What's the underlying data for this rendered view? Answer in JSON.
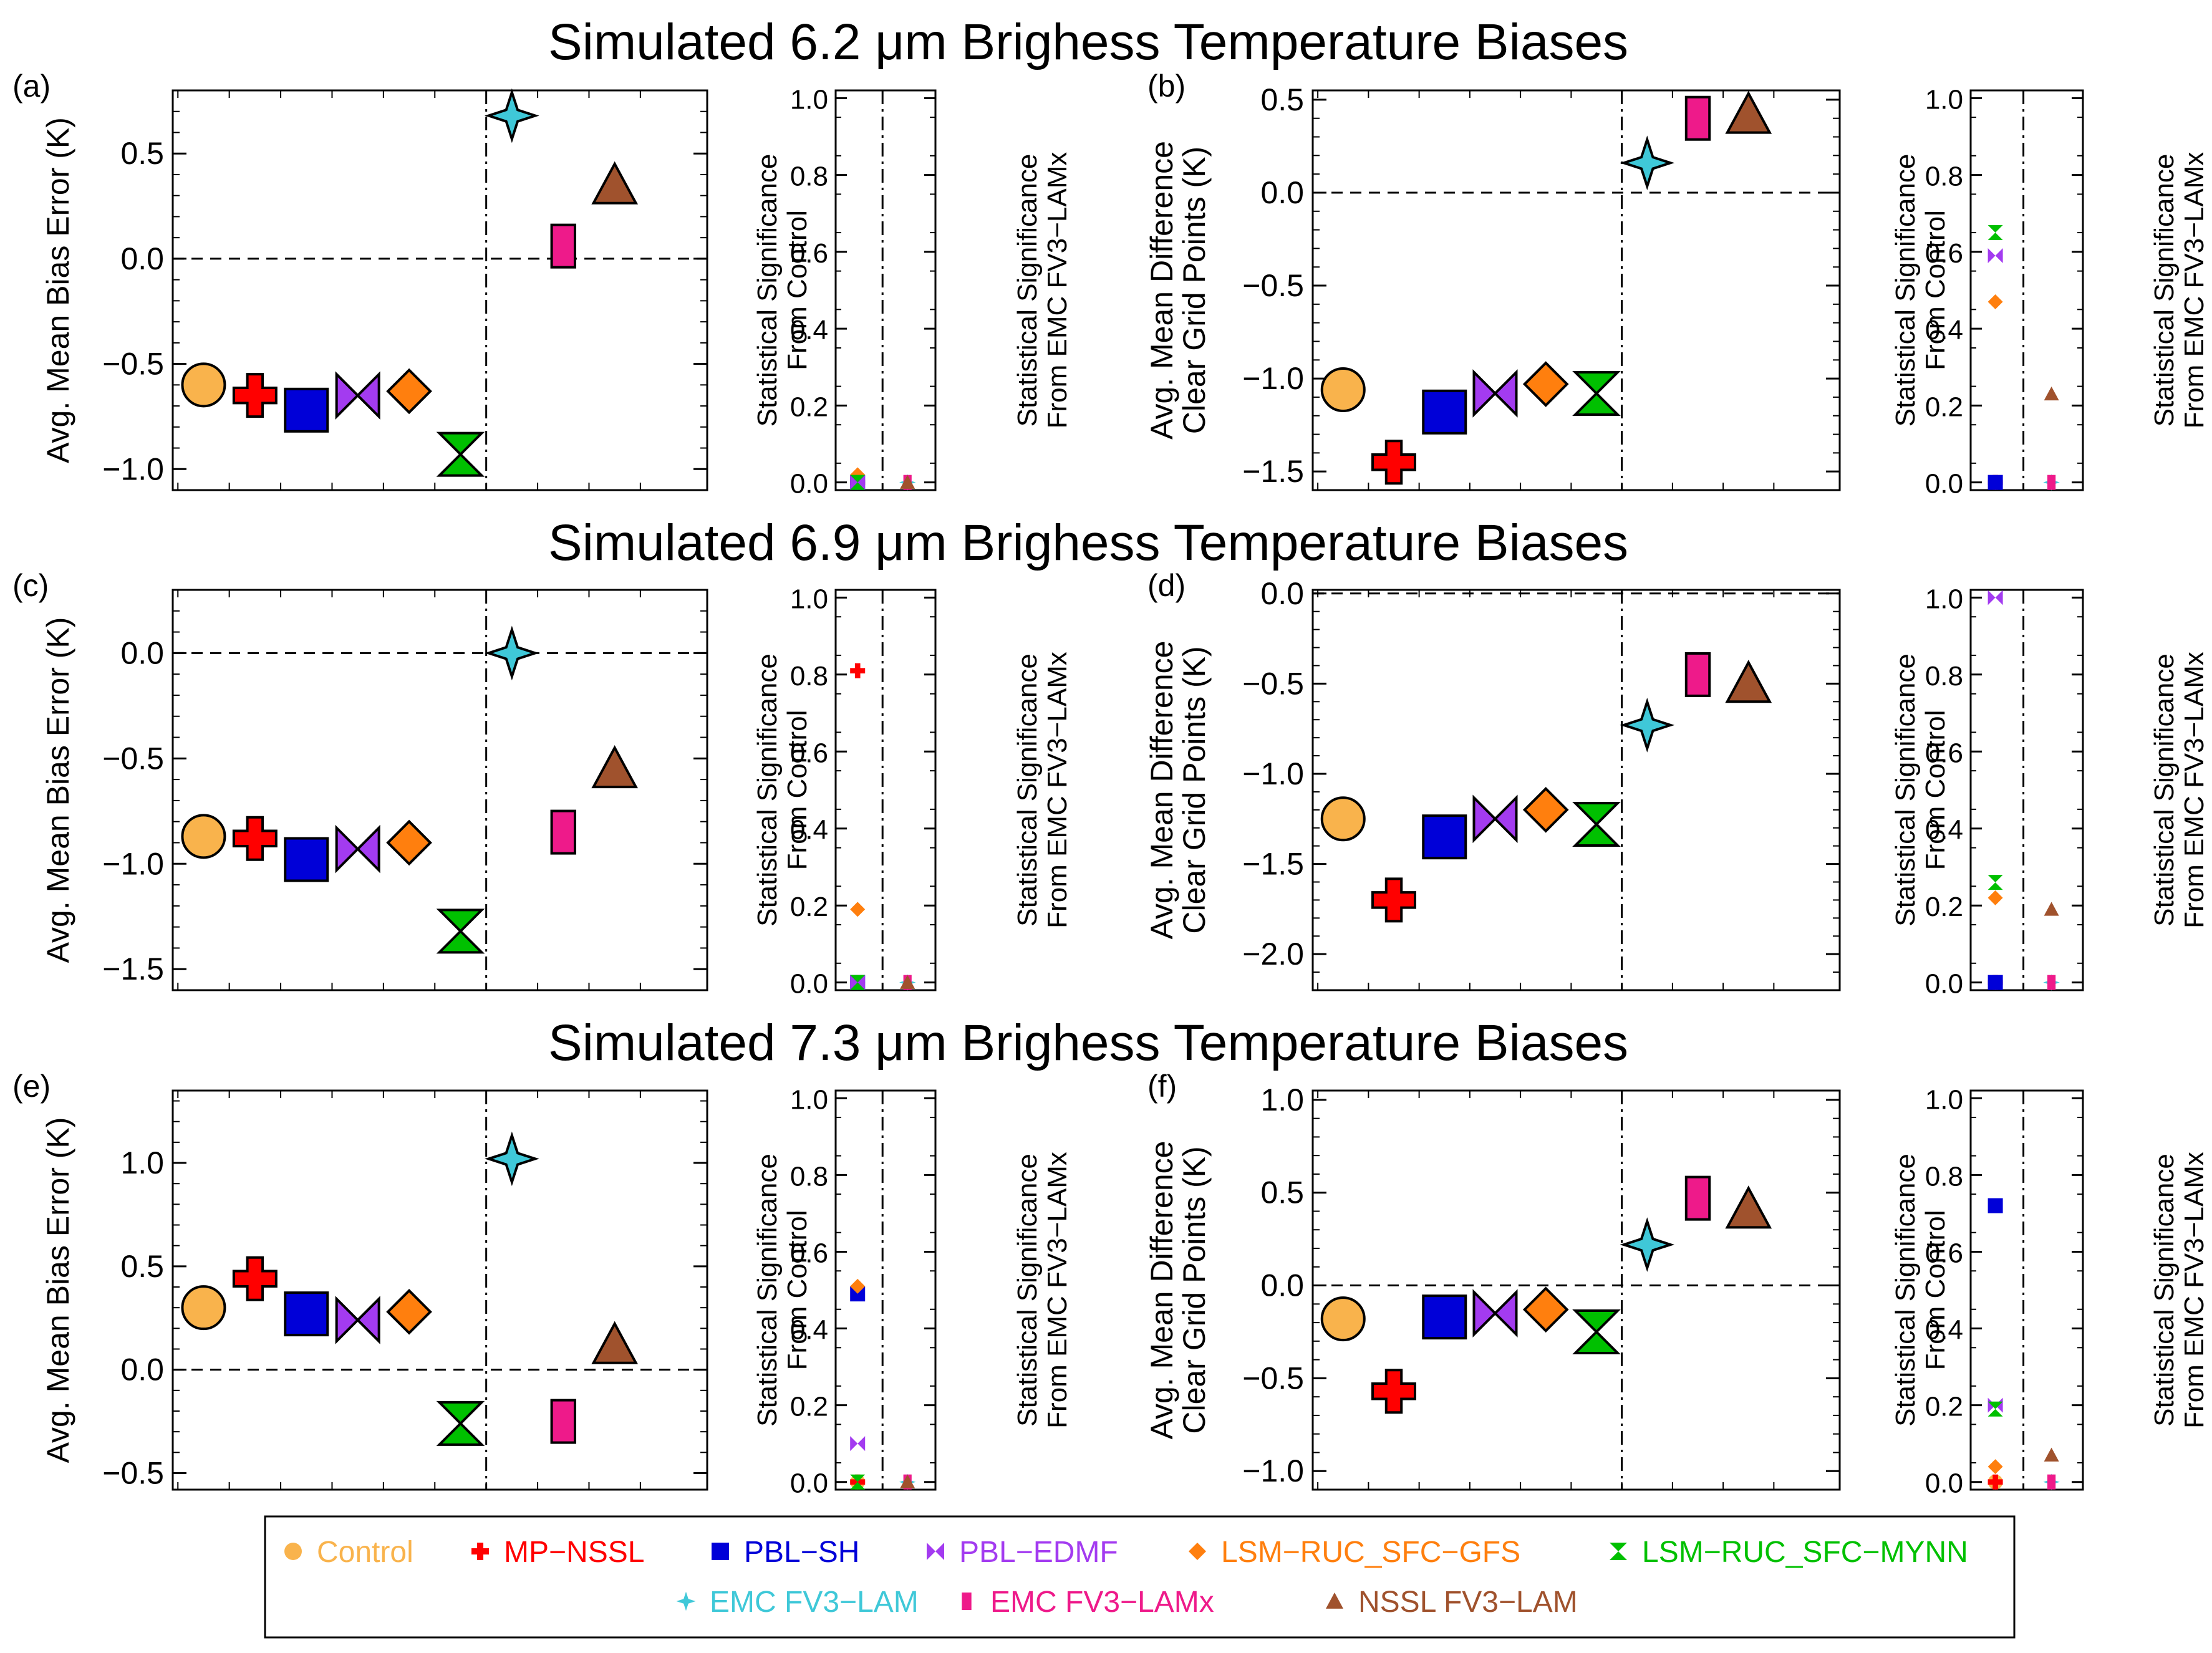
{
  "figure": {
    "rows": [
      "Simulated 6.2 μm Brighess Temperature Biases",
      "Simulated 6.9 μm Brighess Temperature Biases",
      "Simulated 7.3 μm Brighess Temperature Biases"
    ]
  },
  "legend": {
    "items": [
      {
        "label": "Control",
        "color": "#F9B34C",
        "shape": "circle"
      },
      {
        "label": "MP−NSSL",
        "color": "#FF0000",
        "shape": "plus"
      },
      {
        "label": "PBL−SH",
        "color": "#0000D8",
        "shape": "square"
      },
      {
        "label": "PBL−EDMF",
        "color": "#A33BF0",
        "shape": "bowtie"
      },
      {
        "label": "LSM−RUC_SFC−GFS",
        "color": "#FF7F0E",
        "shape": "diamond"
      },
      {
        "label": "LSM−RUC_SFC−MYNN",
        "color": "#00C000",
        "shape": "hourglass"
      },
      {
        "label": "EMC FV3−LAM",
        "color": "#3FC8D8",
        "shape": "star4"
      },
      {
        "label": "EMC FV3−LAMx",
        "color": "#EE1A8A",
        "shape": "rect"
      },
      {
        "label": "NSSL FV3−LAM",
        "color": "#A0522D",
        "shape": "triangle"
      }
    ]
  },
  "sig_labels": {
    "control": [
      "Statistical Significance",
      "From Control"
    ],
    "emc": [
      "Statistical Significance",
      "From EMC FV3−LAMx"
    ]
  },
  "chart_data": [
    {
      "panel": "(a)",
      "type": "scatter",
      "ylabel": [
        "Avg. Mean Bias Error (K)"
      ],
      "ylim": [
        -1.1,
        0.8
      ],
      "yticks": [
        -1.0,
        -0.5,
        0.0,
        0.5
      ],
      "ytick_labels": [
        "−1.0",
        "−0.5",
        "0.0",
        "0.5"
      ],
      "values": [
        -0.6,
        -0.65,
        -0.72,
        -0.65,
        -0.63,
        -0.93,
        0.68,
        0.06,
        0.35
      ],
      "sig_control": {
        "ylim": [
          -0.02,
          1.02
        ],
        "values": [
          0,
          0,
          0,
          0,
          0.02,
          0
        ]
      },
      "sig_emc": {
        "values": [
          0,
          0,
          0
        ]
      }
    },
    {
      "panel": "(b)",
      "type": "scatter",
      "ylabel": [
        "Avg. Mean Difference",
        "Clear Grid Points (K)"
      ],
      "ylim": [
        -1.6,
        0.55
      ],
      "yticks": [
        -1.5,
        -1.0,
        -0.5,
        0.0,
        0.5
      ],
      "ytick_labels": [
        "−1.5",
        "−1.0",
        "−0.5",
        "0.0",
        "0.5"
      ],
      "values": [
        -1.06,
        -1.45,
        -1.18,
        -1.08,
        -1.03,
        -1.08,
        0.16,
        0.4,
        0.42
      ],
      "sig_control": {
        "ylim": [
          -0.02,
          1.02
        ],
        "values": [
          0,
          0,
          0,
          0.59,
          0.47,
          0.65
        ]
      },
      "sig_emc": {
        "values": [
          0,
          0,
          0.23
        ]
      }
    },
    {
      "panel": "(c)",
      "type": "scatter",
      "ylabel": [
        "Avg. Mean Bias Error (K)"
      ],
      "ylim": [
        -1.6,
        0.3
      ],
      "yticks": [
        -1.5,
        -1.0,
        -0.5,
        0.0
      ],
      "ytick_labels": [
        "−1.5",
        "−1.0",
        "−0.5",
        "0.0"
      ],
      "values": [
        -0.87,
        -0.88,
        -0.98,
        -0.93,
        -0.9,
        -1.32,
        0.0,
        -0.85,
        -0.55
      ],
      "sig_control": {
        "ylim": [
          -0.02,
          1.02
        ],
        "values": [
          0,
          0.81,
          0,
          0,
          0.19,
          0
        ]
      },
      "sig_emc": {
        "values": [
          0,
          0,
          0
        ]
      }
    },
    {
      "panel": "(d)",
      "type": "scatter",
      "ylabel": [
        "Avg. Mean Difference",
        "Clear Grid Points (K)"
      ],
      "ylim": [
        -2.2,
        0.02
      ],
      "yticks": [
        -2.0,
        -1.5,
        -1.0,
        -0.5,
        0.0
      ],
      "ytick_labels": [
        "−2.0",
        "−1.5",
        "−1.0",
        "−0.5",
        "0.0"
      ],
      "values": [
        -1.25,
        -1.7,
        -1.35,
        -1.25,
        -1.2,
        -1.28,
        -0.73,
        -0.45,
        -0.5
      ],
      "sig_control": {
        "ylim": [
          -0.02,
          1.02
        ],
        "values": [
          0,
          0,
          0,
          1.0,
          0.22,
          0.26
        ]
      },
      "sig_emc": {
        "values": [
          0,
          0,
          0.19
        ]
      }
    },
    {
      "panel": "(e)",
      "type": "scatter",
      "ylabel": [
        "Avg. Mean Bias Error (K)"
      ],
      "ylim": [
        -0.58,
        1.35
      ],
      "yticks": [
        -0.5,
        0.0,
        0.5,
        1.0
      ],
      "ytick_labels": [
        "−0.5",
        "0.0",
        "0.5",
        "1.0"
      ],
      "values": [
        0.3,
        0.44,
        0.27,
        0.24,
        0.28,
        -0.26,
        1.02,
        -0.25,
        0.12
      ],
      "sig_control": {
        "ylim": [
          -0.02,
          1.02
        ],
        "values": [
          0,
          0,
          0.49,
          0.1,
          0.51,
          0
        ]
      },
      "sig_emc": {
        "values": [
          0,
          0,
          0
        ]
      }
    },
    {
      "panel": "(f)",
      "type": "scatter",
      "ylabel": [
        "Avg. Mean Difference",
        "Clear Grid Points (K)"
      ],
      "ylim": [
        -1.1,
        1.05
      ],
      "yticks": [
        -1.0,
        -0.5,
        0.0,
        0.5,
        1.0
      ],
      "ytick_labels": [
        "−1.0",
        "−0.5",
        "0.0",
        "0.5",
        "1.0"
      ],
      "values": [
        -0.18,
        -0.57,
        -0.17,
        -0.15,
        -0.13,
        -0.25,
        0.22,
        0.47,
        0.41
      ],
      "sig_control": {
        "ylim": [
          -0.02,
          1.02
        ],
        "values": [
          0,
          0,
          0.72,
          0.2,
          0.04,
          0.19
        ]
      },
      "sig_emc": {
        "values": [
          0,
          0,
          0.07
        ]
      }
    }
  ]
}
